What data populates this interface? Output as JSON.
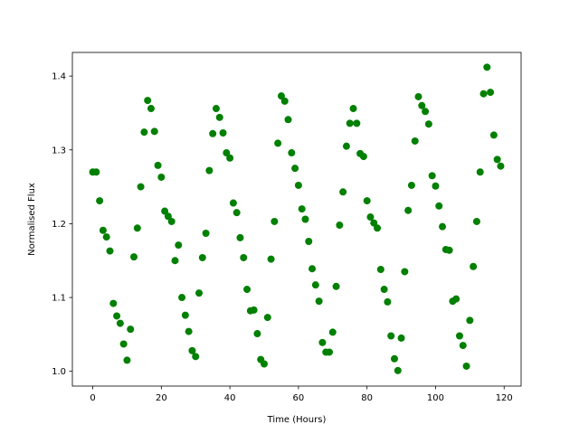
{
  "chart_data": {
    "type": "scatter",
    "xlabel": "Time (Hours)",
    "ylabel": "Normalised Flux",
    "color": "#008000",
    "xlim": [
      -5.95,
      124.95
    ],
    "ylim": [
      0.98,
      1.432
    ],
    "xticks": [
      0,
      20,
      40,
      60,
      80,
      100,
      120
    ],
    "yticks": [
      {
        "value": 1.0,
        "label": "1.0"
      },
      {
        "value": 1.1,
        "label": "1.1"
      },
      {
        "value": 1.2,
        "label": "1.2"
      },
      {
        "value": 1.3,
        "label": "1.3"
      },
      {
        "value": 1.4,
        "label": "1.4"
      }
    ],
    "grid": false,
    "x": [
      0,
      1,
      2,
      3,
      4,
      5,
      6,
      7,
      8,
      9,
      10,
      11,
      12,
      13,
      14,
      15,
      16,
      17,
      18,
      19,
      20,
      21,
      22,
      23,
      24,
      25,
      26,
      27,
      28,
      29,
      30,
      31,
      32,
      33,
      34,
      35,
      36,
      37,
      38,
      39,
      40,
      41,
      42,
      43,
      44,
      45,
      46,
      47,
      48,
      49,
      50,
      51,
      52,
      53,
      54,
      55,
      56,
      57,
      58,
      59,
      60,
      61,
      62,
      63,
      64,
      65,
      66,
      67,
      68,
      69,
      70,
      71,
      72,
      73,
      74,
      75,
      76,
      77,
      78,
      79,
      80,
      81,
      82,
      83,
      84,
      85,
      86,
      87,
      88,
      89,
      90,
      91,
      92,
      93,
      94,
      95,
      96,
      97,
      98,
      99,
      100,
      101,
      102,
      103,
      104,
      105,
      106,
      107,
      108,
      109,
      110,
      111,
      112,
      113,
      114,
      115,
      116,
      117,
      118,
      119
    ],
    "values": [
      1.27,
      1.27,
      1.231,
      1.191,
      1.182,
      1.163,
      1.092,
      1.075,
      1.065,
      1.037,
      1.015,
      1.057,
      1.155,
      1.194,
      1.25,
      1.324,
      1.367,
      1.356,
      1.325,
      1.279,
      1.263,
      1.217,
      1.21,
      1.203,
      1.15,
      1.171,
      1.1,
      1.076,
      1.054,
      1.028,
      1.02,
      1.106,
      1.154,
      1.187,
      1.272,
      1.322,
      1.356,
      1.344,
      1.323,
      1.296,
      1.289,
      1.228,
      1.215,
      1.181,
      1.154,
      1.111,
      1.082,
      1.083,
      1.051,
      1.016,
      1.01,
      1.073,
      1.152,
      1.203,
      1.309,
      1.373,
      1.366,
      1.341,
      1.296,
      1.275,
      1.252,
      1.22,
      1.206,
      1.176,
      1.139,
      1.117,
      1.095,
      1.039,
      1.026,
      1.026,
      1.053,
      1.115,
      1.198,
      1.243,
      1.305,
      1.336,
      1.356,
      1.336,
      1.295,
      1.291,
      1.231,
      1.209,
      1.201,
      1.194,
      1.138,
      1.111,
      1.094,
      1.048,
      1.017,
      1.001,
      1.045,
      1.135,
      1.218,
      1.252,
      1.312,
      1.372,
      1.36,
      1.352,
      1.335,
      1.265,
      1.251,
      1.224,
      1.196,
      1.165,
      1.164,
      1.095,
      1.098,
      1.048,
      1.035,
      1.007,
      1.069,
      1.142,
      1.203,
      1.27,
      1.376,
      1.412,
      1.378,
      1.32,
      1.287,
      1.278
    ]
  }
}
